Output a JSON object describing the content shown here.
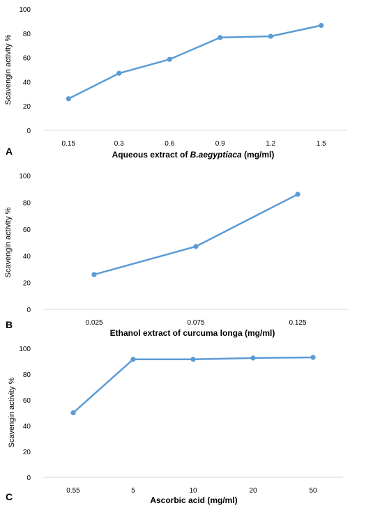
{
  "chart_data": [
    {
      "type": "line",
      "panel_label": "A",
      "categories": [
        "0.15",
        "0.3",
        "0.6",
        "0.9",
        "1.2",
        "1.5"
      ],
      "values": [
        26,
        47,
        58.5,
        76.5,
        77.5,
        86.5
      ],
      "ylabel": "Scavengin activity %",
      "xlabel_parts": [
        {
          "text": "Aqueous extract of ",
          "italic": false
        },
        {
          "text": "B.aegyptiaca",
          "italic": true
        },
        {
          "text": " (mg/ml)",
          "italic": false
        }
      ],
      "ylim": [
        0,
        100
      ],
      "yticks": [
        "0",
        "20",
        "40",
        "60",
        "80",
        "100"
      ],
      "color": "#5b9bd5"
    },
    {
      "type": "line",
      "panel_label": "B",
      "categories": [
        "0.025",
        "0.075",
        "0.125"
      ],
      "values": [
        26,
        47,
        86
      ],
      "ylabel": "Scavengin activity %",
      "xlabel_parts": [
        {
          "text": "Ethanol extract of curcuma longa (mg/ml)",
          "italic": false
        }
      ],
      "ylim": [
        0,
        100
      ],
      "yticks": [
        "0",
        "20",
        "40",
        "60",
        "80",
        "100"
      ],
      "color": "#5b9bd5"
    },
    {
      "type": "line",
      "panel_label": "C",
      "categories": [
        "0.55",
        "5",
        "10",
        "20",
        "50"
      ],
      "values": [
        50,
        91.5,
        91.5,
        92.5,
        93
      ],
      "ylabel": "Scavengin activity %",
      "xlabel_parts": [
        {
          "text": "Ascorbic acid (mg/ml)",
          "italic": false
        }
      ],
      "ylim": [
        0,
        100
      ],
      "yticks": [
        "0",
        "20",
        "40",
        "60",
        "80",
        "100"
      ],
      "color": "#5b9bd5"
    }
  ]
}
